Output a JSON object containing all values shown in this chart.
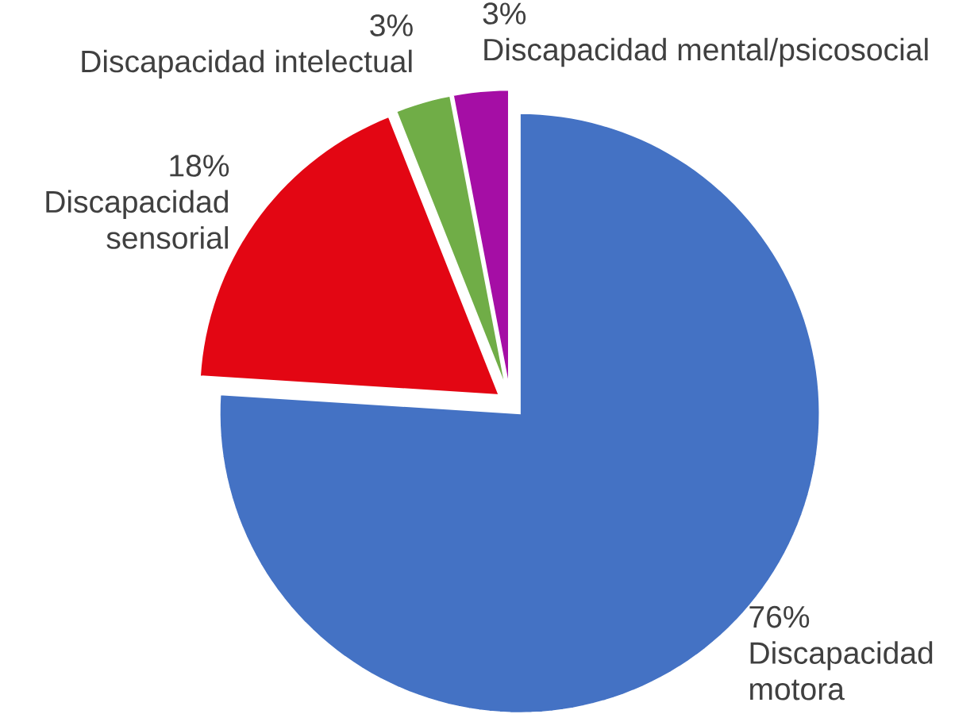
{
  "chart_data": {
    "type": "pie",
    "categories": [
      "Discapacidad motora",
      "Discapacidad sensorial",
      "Discapacidad intelectual",
      "Discapacidad mental/psicosocial"
    ],
    "values": [
      76,
      18,
      3,
      3
    ],
    "value_labels": [
      "76%",
      "18%",
      "3%",
      "3%"
    ],
    "colors": [
      "#4472c4",
      "#e30613",
      "#70ad47",
      "#a50ea5"
    ]
  }
}
